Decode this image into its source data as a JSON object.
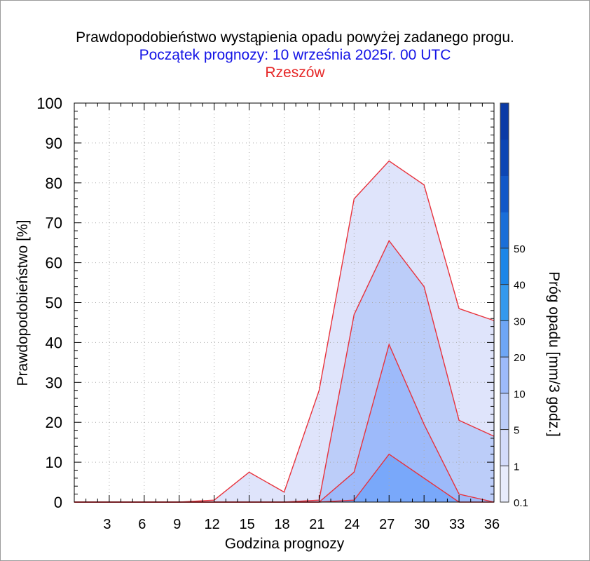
{
  "titles": {
    "line1": "Prawdopodobieństwo wystąpienia opadu powyżej zadanego progu.",
    "line2": "Początek prognozy: 10 września 2025r. 00 UTC",
    "line3": "Rzeszów"
  },
  "colors": {
    "title_line1": "#000000",
    "title_line2": "#1414e6",
    "title_line3": "#e62828",
    "outline": "#e8323c",
    "grid": "#aaaaaa"
  },
  "chart_data": {
    "type": "area",
    "xlabel": "Godzina prognozy",
    "ylabel": "Prawdopodobieństwo [%]",
    "colorbar_label": "Próg opadu [mm/3 godz.]",
    "xlim": [
      0,
      36
    ],
    "ylim": [
      0,
      100
    ],
    "grid": true,
    "x_ticks": [
      3,
      6,
      9,
      12,
      15,
      18,
      21,
      24,
      27,
      30,
      33,
      36
    ],
    "y_ticks": [
      0,
      10,
      20,
      30,
      40,
      50,
      60,
      70,
      80,
      90,
      100
    ],
    "x": [
      0,
      3,
      6,
      9,
      12,
      15,
      18,
      21,
      24,
      27,
      30,
      33,
      36
    ],
    "series": [
      {
        "name": "0.1",
        "color": "#dfe4fb",
        "values": [
          0,
          0,
          0,
          0,
          0.5,
          7.5,
          2.5,
          28,
          76,
          85.5,
          79.5,
          48.5,
          45.5
        ]
      },
      {
        "name": "1",
        "color": "#bccdf9",
        "values": [
          0,
          0,
          0,
          0,
          0,
          0,
          0,
          0.5,
          47,
          65.5,
          54,
          20.5,
          16.5
        ]
      },
      {
        "name": "5",
        "color": "#9dbafa",
        "values": [
          0,
          0,
          0,
          0,
          0,
          0,
          0,
          0,
          7.5,
          39.5,
          19.5,
          2,
          0
        ]
      },
      {
        "name": "10",
        "color": "#79a8fa",
        "values": [
          0,
          0,
          0,
          0,
          0,
          0,
          0,
          0,
          0.5,
          12,
          6,
          0,
          0
        ]
      }
    ],
    "colorbar": {
      "labels": [
        "0.1",
        "1",
        "5",
        "10",
        "20",
        "30",
        "40",
        "50"
      ],
      "bands": [
        "#e8ecfc",
        "#d3dbfa",
        "#bccdf9",
        "#9dbafa",
        "#6ea6f5",
        "#3499ed",
        "#1c86e8",
        "#1a6ed8",
        "#1258c8",
        "#0c46b4",
        "#0a3aa6"
      ]
    }
  }
}
